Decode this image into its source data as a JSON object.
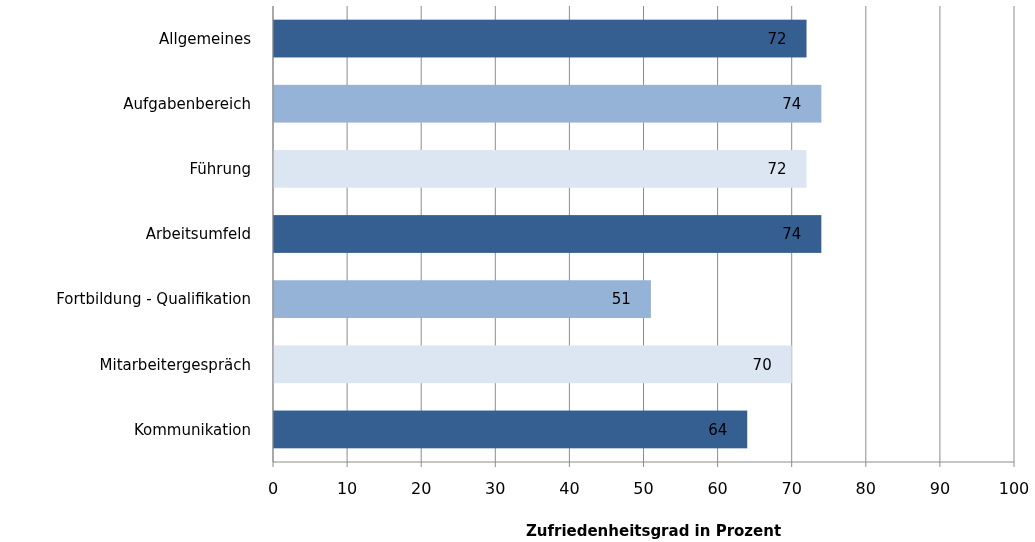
{
  "chart_data": {
    "type": "bar",
    "orientation": "horizontal",
    "xlabel": "Zufriedenheitsgrad in Prozent",
    "categories": [
      "Allgemeines",
      "Aufgabenbereich",
      "Führung",
      "Arbeitsumfeld",
      "Fortbildung - Qualifikation",
      "Mitarbeitergespräch",
      "Kommunikation"
    ],
    "values": [
      72,
      74,
      72,
      74,
      51,
      70,
      64
    ],
    "colors": [
      "#365f91",
      "#95b3d7",
      "#dce6f2",
      "#365f91",
      "#95b3d7",
      "#dce6f2",
      "#365f91"
    ],
    "xlim": [
      0,
      100
    ],
    "xticks": [
      0,
      10,
      20,
      30,
      40,
      50,
      60,
      70,
      80,
      90,
      100
    ],
    "grid": "x",
    "data_labels": true
  }
}
